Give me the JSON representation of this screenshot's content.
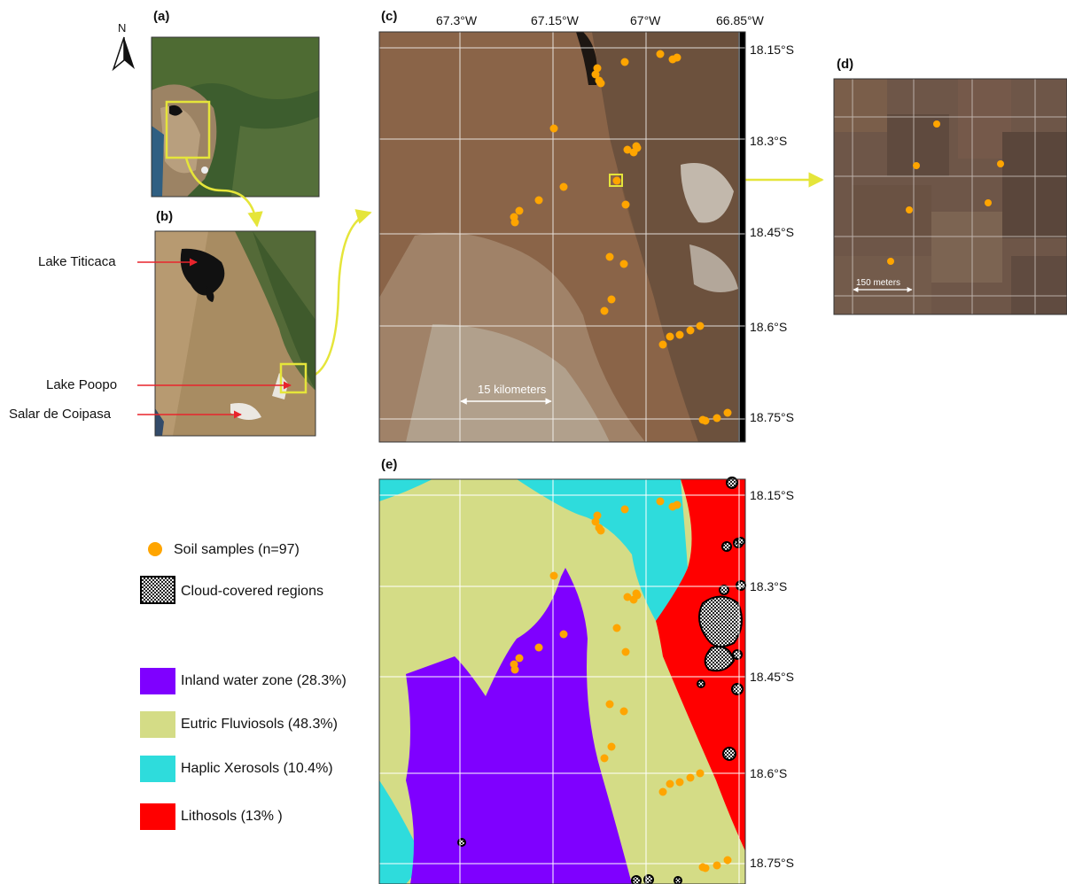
{
  "panels": {
    "a": "(a)",
    "b": "(b)",
    "c": "(c)",
    "d": "(d)",
    "e": "(e)"
  },
  "north_arrow": "N",
  "places": {
    "titicaca": "Lake Titicaca",
    "poopo": "Lake Poopo",
    "coipasa": "Salar de Coipasa"
  },
  "lon_ticks": [
    "67.3°W",
    "67.15°W",
    "67°W",
    "66.85°W"
  ],
  "lat_ticks": [
    "18.15°S",
    "18.3°S",
    "18.45°S",
    "18.6°S",
    "18.75°S"
  ],
  "scale_bars": {
    "c": "15 kilometers",
    "d": "150 meters"
  },
  "legend": {
    "samples": "Soil samples (n=97)",
    "clouds": "Cloud-covered regions",
    "classes": [
      {
        "label": "Inland water zone (28.3%)",
        "color": "#7f00ff"
      },
      {
        "label": "Eutric Fluviosols (48.3%)",
        "color": "#d4dc86"
      },
      {
        "label": "Haplic Xerosols (10.4%)",
        "color": "#2edcdc"
      },
      {
        "label": "Lithosols (13% )",
        "color": "#ff0000"
      }
    ]
  },
  "colors": {
    "sample": "#ffa500",
    "highlight": "#e5e53a",
    "pointer": "#e8242c",
    "grid": "#ffffff"
  },
  "icons": [
    "north-arrow-icon",
    "scale-bar-icon",
    "arrow-connector-icon"
  ]
}
